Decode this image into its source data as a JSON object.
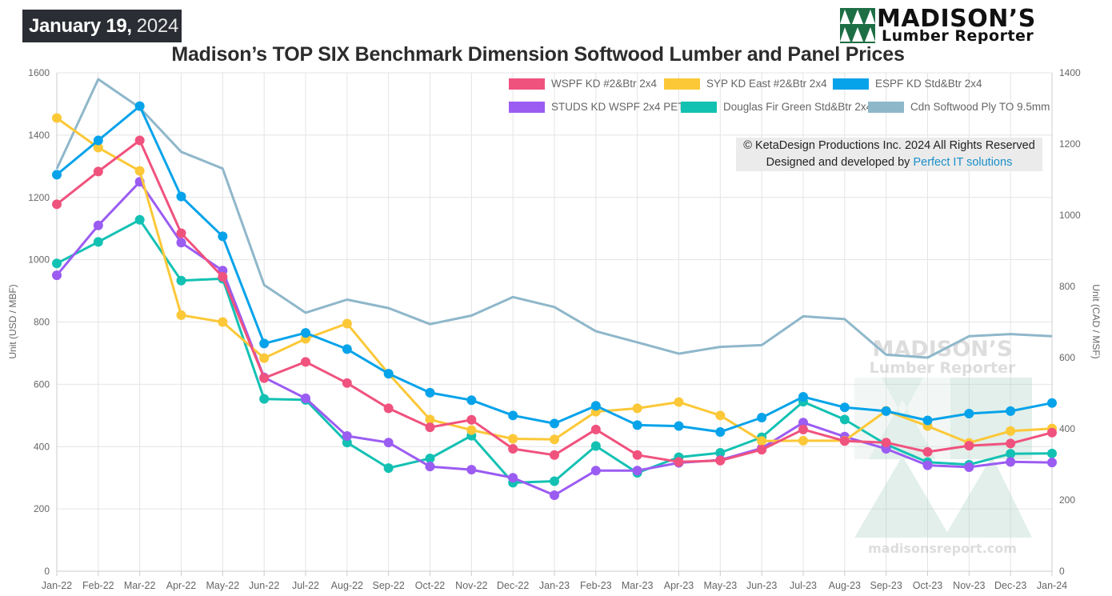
{
  "header": {
    "date_bold": "January 19,",
    "date_year": "2024",
    "title": "Madison’s TOP SIX Benchmark Dimension Softwood Lumber and Panel Prices"
  },
  "logo": {
    "line1": "MADISON’S",
    "line2": "Lumber Reporter",
    "watermark_line1": "MADISON’S",
    "watermark_line2": "Lumber Reporter",
    "watermark_url": "madisonsreport.com"
  },
  "copyright": {
    "line1": "© KetaDesign Productions Inc. 2024 All Rights Reserved",
    "line2_prefix": "Designed and developed by ",
    "line2_link": "Perfect IT solutions"
  },
  "chart_data": {
    "type": "line",
    "title": "Madison’s TOP SIX Benchmark Dimension Softwood Lumber and Panel Prices",
    "ylabel": "Unit (USD / MBF)",
    "y2label": "Unit (CAD / MSF)",
    "ylim": [
      0,
      1600
    ],
    "y2lim": [
      0,
      1400
    ],
    "yticks": [
      0,
      200,
      400,
      600,
      800,
      1000,
      1200,
      1400,
      1600
    ],
    "y2ticks": [
      0,
      200,
      400,
      600,
      800,
      1000,
      1200,
      1400
    ],
    "grid": true,
    "legend_position": "top-right",
    "categories": [
      "Jan-22",
      "Feb-22",
      "Mar-22",
      "Apr-22",
      "May-22",
      "Jun-22",
      "Jul-22",
      "Aug-22",
      "Sep-22",
      "Oct-22",
      "Nov-22",
      "Dec-22",
      "Jan-23",
      "Feb-23",
      "Mar-23",
      "Apr-23",
      "May-23",
      "Jun-23",
      "Jul-23",
      "Aug-23",
      "Sep-23",
      "Oct-23",
      "Nov-23",
      "Dec-23",
      "Jan-24"
    ],
    "series": [
      {
        "name": "WSPF KD #2&Btr 2x4",
        "color": "#f0527e",
        "axis": "left",
        "values": [
          1178,
          1283,
          1383,
          1085,
          945,
          620,
          672,
          604,
          523,
          462,
          486,
          393,
          373,
          455,
          373,
          351,
          355,
          390,
          455,
          418,
          413,
          383,
          403,
          410,
          445
        ]
      },
      {
        "name": "SYP KD East #2&Btr 2x4",
        "color": "#fcc838",
        "axis": "left",
        "values": [
          1455,
          1360,
          1285,
          822,
          800,
          684,
          746,
          795,
          634,
          487,
          453,
          425,
          423,
          512,
          523,
          543,
          500,
          418,
          419,
          419,
          515,
          466,
          412,
          450,
          458
        ]
      },
      {
        "name": "ESPF KD Std&Btr 2x4",
        "color": "#07a3ea",
        "axis": "left",
        "values": [
          1273,
          1383,
          1493,
          1203,
          1075,
          731,
          765,
          713,
          634,
          573,
          549,
          500,
          474,
          531,
          469,
          466,
          447,
          493,
          560,
          526,
          514,
          484,
          506,
          514,
          540
        ]
      },
      {
        "name": "STUDS KD WSPF 2x4 PET",
        "color": "#9b5cf2",
        "axis": "left",
        "values": [
          950,
          1110,
          1250,
          1055,
          965,
          622,
          555,
          434,
          413,
          336,
          326,
          300,
          244,
          323,
          323,
          348,
          357,
          395,
          477,
          432,
          393,
          340,
          334,
          351,
          349
        ]
      },
      {
        "name": "Douglas Fir Green Std&Btr 2x4",
        "color": "#13c1b3",
        "axis": "left",
        "values": [
          988,
          1057,
          1128,
          933,
          939,
          553,
          550,
          413,
          331,
          362,
          435,
          284,
          289,
          402,
          316,
          366,
          380,
          430,
          544,
          487,
          407,
          350,
          342,
          377,
          378
        ]
      },
      {
        "name": "Cdn Softwood Ply TO 9.5mm",
        "color": "#8fb7ca",
        "axis": "right",
        "values": [
          1130,
          1382,
          1302,
          1178,
          1131,
          804,
          726,
          763,
          739,
          694,
          718,
          770,
          742,
          674,
          643,
          611,
          630,
          635,
          716,
          708,
          608,
          600,
          660,
          666,
          660
        ]
      }
    ]
  }
}
